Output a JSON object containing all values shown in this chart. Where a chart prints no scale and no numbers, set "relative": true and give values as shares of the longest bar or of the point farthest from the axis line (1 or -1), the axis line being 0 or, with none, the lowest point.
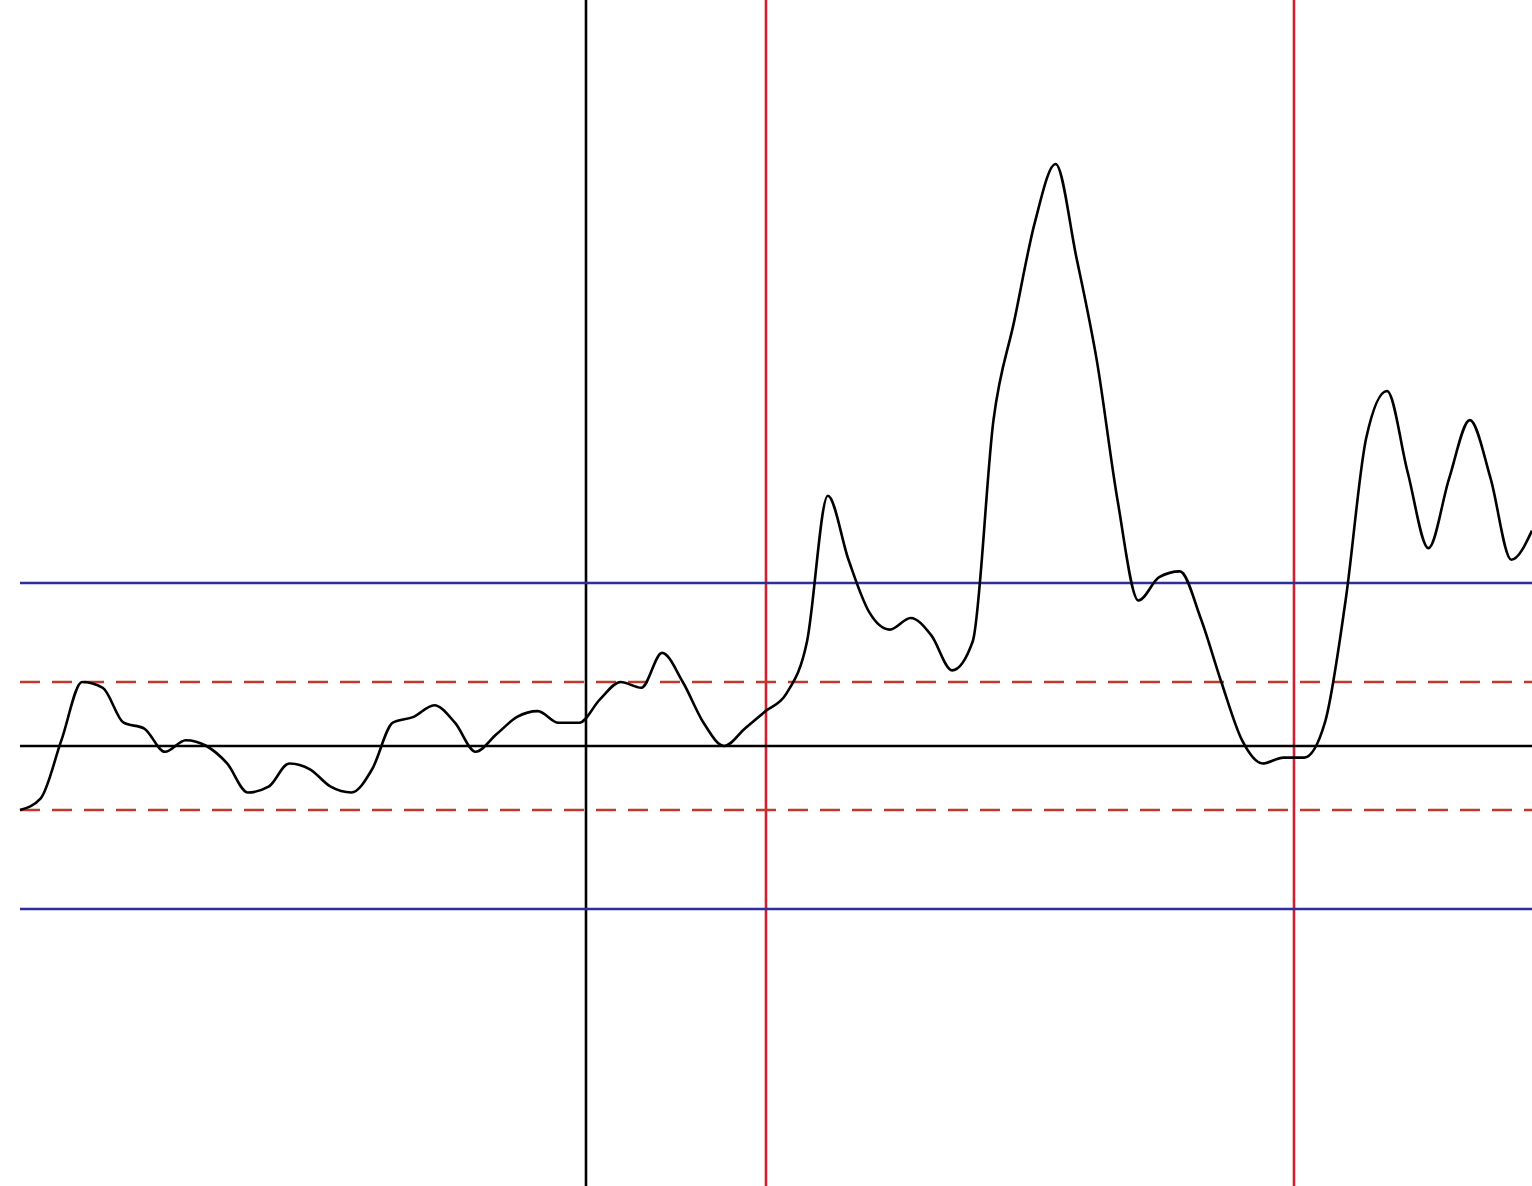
{
  "chart_data": {
    "type": "line",
    "relative": true,
    "categories": [
      null,
      null,
      null,
      null,
      null,
      null,
      null,
      null,
      null,
      null,
      null,
      null,
      null,
      null,
      null,
      null,
      null,
      null,
      null,
      null,
      null,
      null,
      null,
      null,
      null,
      null,
      null,
      null,
      null,
      null,
      null,
      null,
      null,
      null,
      null,
      null,
      null,
      null,
      null,
      null,
      null,
      null,
      null,
      null,
      null,
      null,
      null,
      null,
      null,
      null,
      null,
      null,
      null,
      null,
      null,
      null,
      null,
      null,
      null,
      null,
      null,
      null,
      null,
      null,
      null,
      null,
      null,
      null,
      null,
      null,
      null,
      null,
      null,
      null
    ],
    "series": [
      {
        "color": "#000000",
        "values": [
          -0.11,
          -0.09,
          0.01,
          0.11,
          0.1,
          0.04,
          0.03,
          -0.01,
          0.01,
          0,
          -0.03,
          -0.08,
          -0.07,
          -0.03,
          -0.04,
          -0.07,
          -0.08,
          -0.04,
          0.04,
          0.05,
          0.07,
          0.04,
          -0.01,
          0.02,
          0.05,
          0.06,
          0.04,
          0.04,
          0.08,
          0.11,
          0.1,
          0.16,
          0.11,
          0.04,
          0,
          0.03,
          0.06,
          0.09,
          0.18,
          0.43,
          0.32,
          0.23,
          0.2,
          0.22,
          0.19,
          0.13,
          0.18,
          0.56,
          0.73,
          0.9,
          1,
          0.84,
          0.66,
          0.42,
          0.25,
          0.29,
          0.3,
          0.22,
          0.11,
          0.01,
          -0.03,
          -0.02,
          -0.02,
          0.04,
          0.25,
          0.53,
          0.61,
          0.47,
          0.34,
          0.46,
          0.56,
          0.46,
          0.32,
          0.37
        ]
      }
    ],
    "ref_lines": [
      {
        "axis": "y",
        "value": 0.28,
        "color": "#2e2e9a",
        "line_style": "solid"
      },
      {
        "axis": "y",
        "value": 0.11,
        "color": "#c0392b",
        "line_style": "dashed"
      },
      {
        "axis": "y",
        "value": -0.11,
        "color": "#c0392b",
        "line_style": "dashed"
      },
      {
        "axis": "y",
        "value": -0.28,
        "color": "#2e2e9a",
        "line_style": "solid"
      }
    ]
  }
}
